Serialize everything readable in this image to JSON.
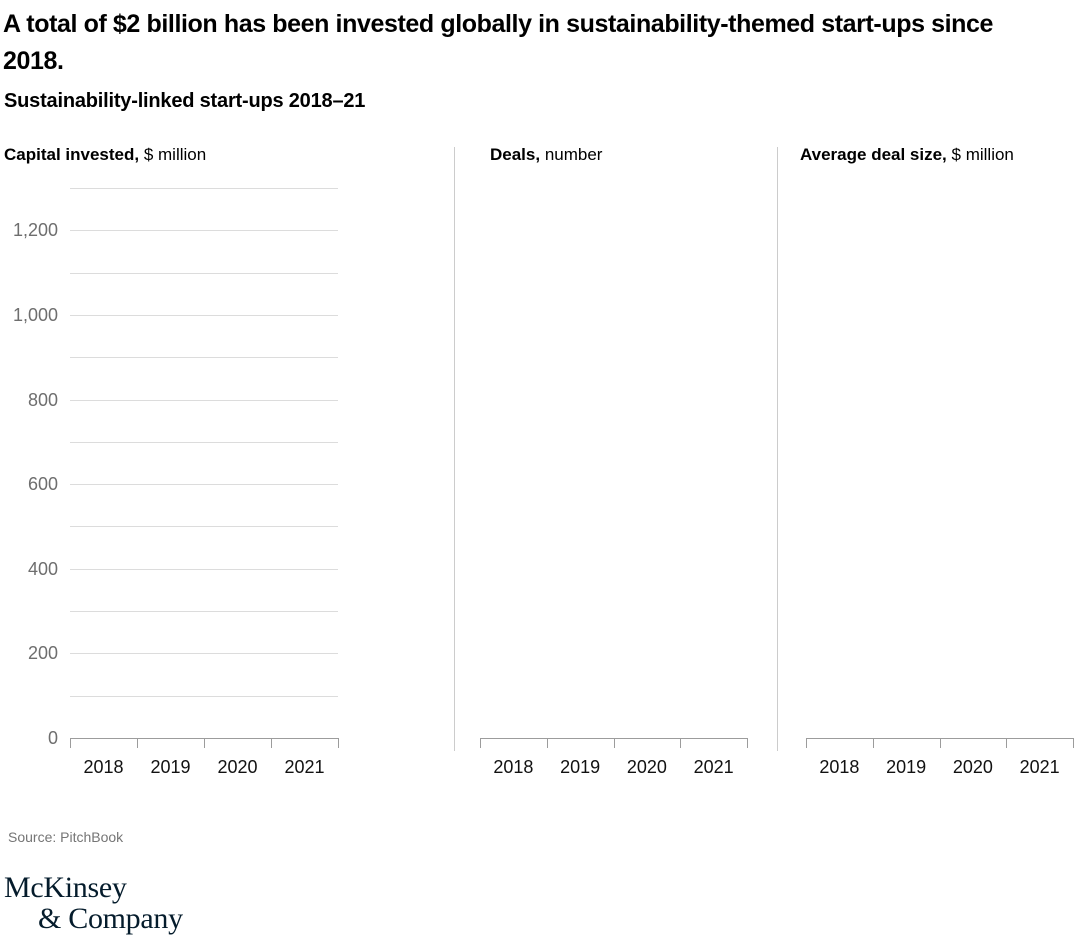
{
  "header": {
    "title": "A total of $2 billion has been invested globally in sustainability-themed start-ups since 2018.",
    "subtitle": "Sustainability-linked start-ups 2018–21"
  },
  "panels": [
    {
      "label_bold": "Capital invested,",
      "label_regular": "$ million"
    },
    {
      "label_bold": "Deals,",
      "label_regular": "number"
    },
    {
      "label_bold": "Average deal size,",
      "label_regular": "$ million"
    }
  ],
  "chart_data": [
    {
      "type": "bar",
      "title": "Capital invested, $ million",
      "categories": [
        "2018",
        "2019",
        "2020",
        "2021"
      ],
      "values": [],
      "ylim": [
        0,
        1300
      ],
      "y_axis": {
        "min": 0,
        "max": 1300,
        "grid_step": 100,
        "label_step": 200,
        "labels_visible": true
      },
      "grid": true,
      "legend": "none"
    },
    {
      "type": "bar",
      "title": "Deals, number",
      "categories": [
        "2018",
        "2019",
        "2020",
        "2021"
      ],
      "values": [],
      "grid": false,
      "legend": "none"
    },
    {
      "type": "bar",
      "title": "Average deal size, $ million",
      "categories": [
        "2018",
        "2019",
        "2020",
        "2021"
      ],
      "values": [],
      "grid": false,
      "legend": "none"
    }
  ],
  "footer": {
    "source": "Source: PitchBook",
    "logo_line1": "McKinsey",
    "logo_line2": "& Company"
  },
  "colors": {
    "text": "#000000",
    "tick_label": "#6e6e6e",
    "gridline": "#dcdcdc",
    "axis_line": "#9c9c9c",
    "divider": "#cccccc",
    "source_text": "#757575",
    "logo_navy": "#051c2c",
    "background": "#ffffff"
  }
}
